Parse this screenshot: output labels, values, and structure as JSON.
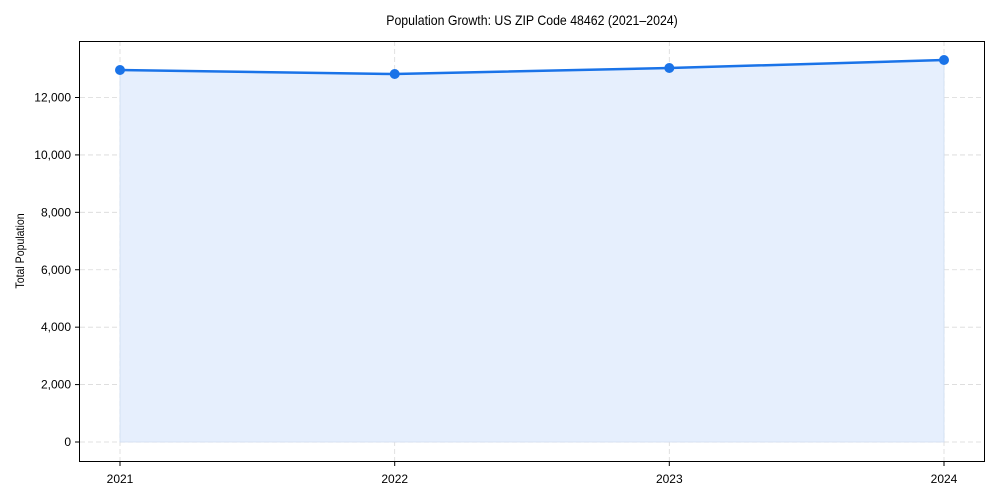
{
  "chart_data": {
    "type": "area",
    "title": "Population Growth: US ZIP Code 48462 (2021–2024)",
    "xlabel": "",
    "ylabel": "Total Population",
    "categories": [
      "2021",
      "2022",
      "2023",
      "2024"
    ],
    "series": [
      {
        "name": "Total Population",
        "values": [
          12957,
          12818,
          13027,
          13306
        ]
      }
    ],
    "ylim": [
      -650,
      14150
    ],
    "yticks": [
      0,
      2000,
      4000,
      6000,
      8000,
      10000,
      12000
    ],
    "ytick_labels": [
      "0",
      "2,000",
      "4,000",
      "6,000",
      "8,000",
      "10,000",
      "12,000"
    ],
    "grid": true,
    "legend": null,
    "colors": {
      "line": "#1a73e8",
      "fill": "#e6effd",
      "grid": "#d9d9d9"
    }
  }
}
